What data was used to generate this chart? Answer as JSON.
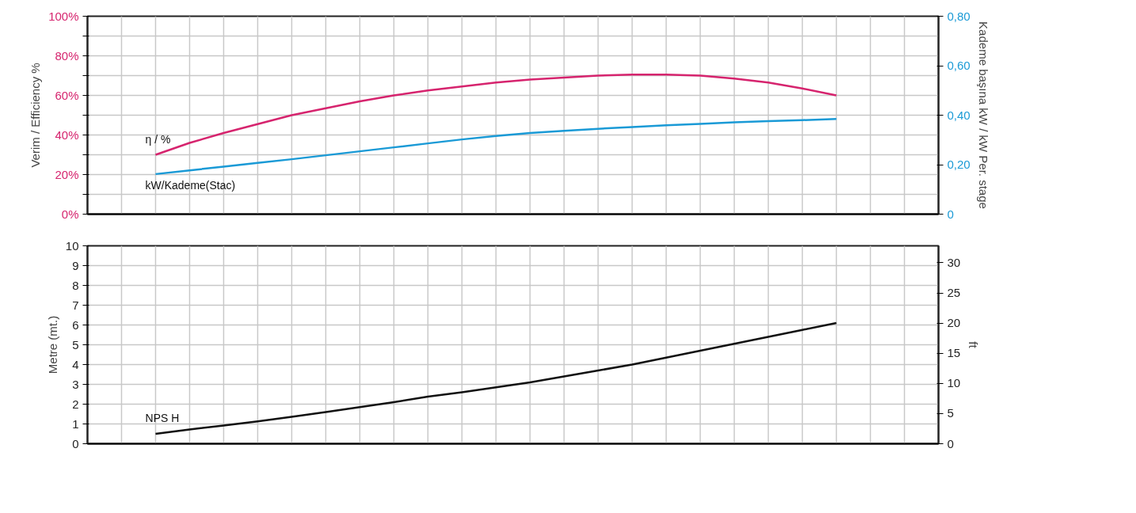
{
  "chart_data": [
    {
      "type": "line",
      "ylabel": "Verim / Efficiency %",
      "y2label": "Kademe başına kW / kW Per. stage",
      "categories": [
        null,
        null,
        null,
        null,
        null,
        null,
        null,
        null,
        null,
        null,
        null,
        null,
        null,
        null,
        null,
        null,
        null,
        null,
        null,
        null,
        null,
        null,
        null,
        null,
        null,
        null
      ],
      "series": [
        {
          "name": "η / %",
          "color": "#d6246e",
          "values": [
            null,
            null,
            30,
            36,
            41,
            45.5,
            50,
            53.5,
            57,
            60,
            62.5,
            64.5,
            66.5,
            68,
            69,
            70,
            70.5,
            70.5,
            70,
            68.5,
            66.5,
            63.5,
            60,
            null,
            null,
            null
          ]
        },
        {
          "name": "kW/Kademe(Stac)",
          "color": "#1a9ad6",
          "axis": "y2",
          "values": [
            null,
            null,
            0.162,
            0.177,
            0.192,
            0.207,
            0.222,
            0.238,
            0.254,
            0.27,
            0.286,
            0.302,
            0.316,
            0.328,
            0.337,
            0.345,
            0.352,
            0.359,
            0.365,
            0.371,
            0.376,
            0.38,
            0.385,
            null,
            null,
            null
          ]
        }
      ],
      "ylim": [
        0,
        100
      ],
      "yticks": [
        {
          "value": 0,
          "label": "0%"
        },
        {
          "value": 10,
          "label": null
        },
        {
          "value": 20,
          "label": "20%"
        },
        {
          "value": 30,
          "label": null
        },
        {
          "value": 40,
          "label": "40%"
        },
        {
          "value": 50,
          "label": null
        },
        {
          "value": 60,
          "label": "60%"
        },
        {
          "value": 70,
          "label": null
        },
        {
          "value": 80,
          "label": "80%"
        },
        {
          "value": 90,
          "label": null
        },
        {
          "value": 100,
          "label": "100%"
        }
      ],
      "y2lim": [
        0,
        0.8
      ],
      "y2ticks": [
        {
          "value": 0,
          "label": "0"
        },
        {
          "value": 0.2,
          "label": "0,20"
        },
        {
          "value": 0.4,
          "label": "0,40"
        },
        {
          "value": 0.6,
          "label": "0,60"
        },
        {
          "value": 0.8,
          "label": "0,80"
        }
      ],
      "tick_labels": "y",
      "grid": true,
      "marker": "none",
      "line_style": "solid"
    },
    {
      "type": "line",
      "ylabel": "Metre (mt.)",
      "y2label": "ft",
      "categories": [
        null,
        null,
        null,
        null,
        null,
        null,
        null,
        null,
        null,
        null,
        null,
        null,
        null,
        null,
        null,
        null,
        null,
        null,
        null,
        null,
        null,
        null,
        null,
        null,
        null,
        null
      ],
      "series": [
        {
          "name": "NPS H",
          "color": "#111111",
          "values": [
            null,
            null,
            0.5,
            0.72,
            0.92,
            1.13,
            1.36,
            1.6,
            1.85,
            2.1,
            2.38,
            2.6,
            2.85,
            3.1,
            3.4,
            3.7,
            4.0,
            4.35,
            4.7,
            5.05,
            5.4,
            5.75,
            6.1,
            null,
            null,
            null
          ]
        }
      ],
      "ylim": [
        0,
        10
      ],
      "yticks": [
        0,
        1,
        2,
        3,
        4,
        5,
        6,
        7,
        8,
        9,
        10
      ],
      "y2lim": [
        0,
        32.81
      ],
      "y2ticks": [
        0,
        5,
        10,
        15,
        20,
        25,
        30
      ],
      "tick_labels": "y",
      "grid": true,
      "marker": "none",
      "line_style": "solid"
    }
  ]
}
